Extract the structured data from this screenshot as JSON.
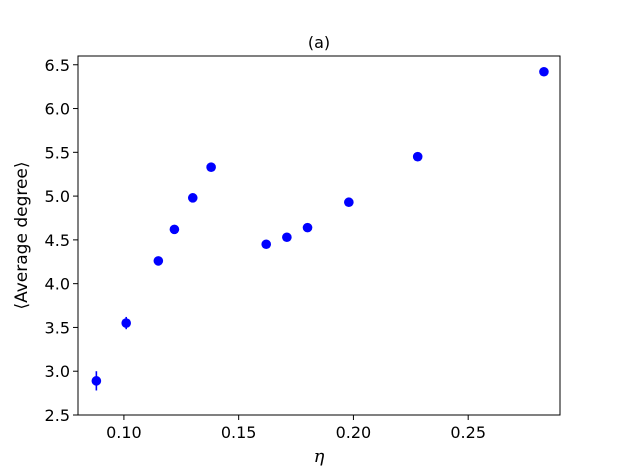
{
  "chart_data": {
    "type": "scatter",
    "title": "(a)",
    "xlabel": "η",
    "ylabel": "⟨Average degree⟩",
    "xlim": [
      0.08,
      0.29
    ],
    "ylim": [
      2.5,
      6.6
    ],
    "xticks": [
      "0.10",
      "0.15",
      "0.20",
      "0.25"
    ],
    "yticks": [
      "2.5",
      "3.0",
      "3.5",
      "4.0",
      "4.5",
      "5.0",
      "5.5",
      "6.0",
      "6.5"
    ],
    "grid": false,
    "color": "#0000ff",
    "series": [
      {
        "x": [
          0.088,
          0.101,
          0.115,
          0.122,
          0.13,
          0.138,
          0.162,
          0.171,
          0.18,
          0.198,
          0.228,
          0.283
        ],
        "y": [
          2.89,
          3.55,
          4.26,
          4.62,
          4.98,
          5.33,
          4.45,
          4.53,
          4.64,
          4.93,
          5.45,
          6.42
        ],
        "yerr": [
          0.11,
          0.07,
          0.04,
          0.04,
          0.03,
          0.04,
          0.03,
          0.03,
          0.03,
          0.03,
          0.02,
          0.02
        ]
      }
    ]
  }
}
